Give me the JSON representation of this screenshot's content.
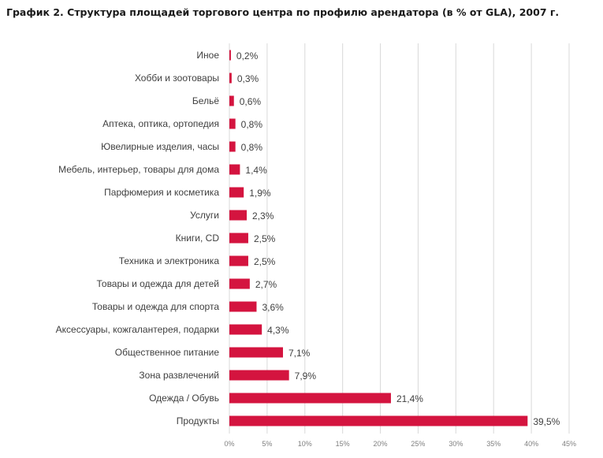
{
  "chart_data": {
    "type": "bar",
    "orientation": "horizontal",
    "title": "График 2. Структура площадей торгового центра по профилю арендатора (в % от GLA), 2007 г.",
    "categories": [
      "Иное",
      "Хобби и зоотовары",
      "Бельё",
      "Аптека, оптика, ортопедия",
      "Ювелирные изделия, часы",
      "Мебель, интерьер, товары для дома",
      "Парфюмерия и косметика",
      "Услуги",
      "Книги, CD",
      "Техника и электроника",
      "Товары и одежда для детей",
      "Товары и одежда для спорта",
      "Аксессуары, кожгалантерея, подарки",
      "Общественное питание",
      "Зона развлечений",
      "Одежда / Обувь",
      "Продукты"
    ],
    "values": [
      0.2,
      0.3,
      0.6,
      0.8,
      0.8,
      1.4,
      1.9,
      2.3,
      2.5,
      2.5,
      2.7,
      3.6,
      4.3,
      7.1,
      7.9,
      21.4,
      39.5
    ],
    "value_labels": [
      "0,2%",
      "0,3%",
      "0,6%",
      "0,8%",
      "0,8%",
      "1,4%",
      "1,9%",
      "2,3%",
      "2,5%",
      "2,5%",
      "2,7%",
      "3,6%",
      "4,3%",
      "7,1%",
      "7,9%",
      "21,4%",
      "39,5%"
    ],
    "xlim": [
      0,
      45
    ],
    "x_ticks": [
      "0%",
      "5%",
      "10%",
      "15%",
      "20%",
      "25%",
      "30%",
      "35%",
      "40%",
      "45%"
    ],
    "xlabel": "",
    "ylabel": "",
    "grid": "vertical",
    "legend": "none",
    "bar_color": "#d4143f",
    "grid_color": "#d9d9d9"
  }
}
